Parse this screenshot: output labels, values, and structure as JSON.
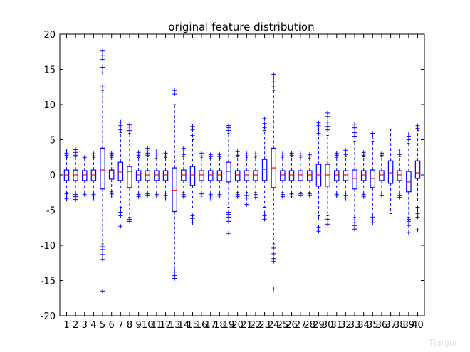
{
  "chart_data": {
    "type": "box",
    "title": "original feature distribution",
    "xlabel": "",
    "ylabel": "",
    "ylim": [
      -20,
      20
    ],
    "yticks": [
      -20,
      -15,
      -10,
      -5,
      0,
      5,
      10,
      15,
      20
    ],
    "categories": [
      "1",
      "2",
      "3",
      "4",
      "5",
      "6",
      "7",
      "8",
      "9",
      "10",
      "11",
      "12",
      "13",
      "14",
      "15",
      "16",
      "17",
      "18",
      "19",
      "20",
      "21",
      "22",
      "23",
      "24",
      "25",
      "26",
      "27",
      "28",
      "29",
      "30",
      "31",
      "32",
      "33",
      "34",
      "35",
      "36",
      "37",
      "38",
      "39",
      "40"
    ],
    "box_color": "#0000ff",
    "median_color": "#ff0000",
    "boxes": [
      {
        "median": 0.0,
        "q1": -0.8,
        "q3": 0.7,
        "whisker_low": -2.5,
        "whisker_high": 2.5,
        "fliers": [
          -3.4,
          -3.0,
          -2.7,
          2.8,
          3.1,
          3.4
        ]
      },
      {
        "median": 0.0,
        "q1": -0.8,
        "q3": 0.7,
        "whisker_low": -2.6,
        "whisker_high": 2.6,
        "fliers": [
          -3.5,
          -3.1,
          -2.8,
          2.8,
          3.2,
          3.6
        ]
      },
      {
        "median": 0.0,
        "q1": -0.8,
        "q3": 0.6,
        "whisker_low": -2.6,
        "whisker_high": 2.3,
        "fliers": [
          -2.8,
          2.5
        ]
      },
      {
        "median": 0.0,
        "q1": -0.8,
        "q3": 0.7,
        "whisker_low": -2.6,
        "whisker_high": 2.5,
        "fliers": [
          -3.3,
          -3.0,
          -2.8,
          2.7,
          3.0
        ]
      },
      {
        "median": 0.7,
        "q1": -2.0,
        "q3": 3.8,
        "whisker_low": -9.8,
        "whisker_high": 12.0,
        "fliers": [
          -16.5,
          -12.0,
          -11.3,
          -10.6,
          -10.2,
          12.5,
          14.5,
          15.3,
          16.4,
          17.0,
          17.6
        ]
      },
      {
        "median": 0.6,
        "q1": -0.6,
        "q3": 0.7,
        "whisker_low": -2.4,
        "whisker_high": 2.5,
        "fliers": [
          -3.0,
          -2.7,
          2.8,
          3.1
        ]
      },
      {
        "median": 0.4,
        "q1": -0.8,
        "q3": 1.8,
        "whisker_low": -4.6,
        "whisker_high": 6.0,
        "fliers": [
          -7.3,
          -5.8,
          -5.3,
          -5.0,
          6.4,
          7.0,
          7.5
        ]
      },
      {
        "median": 0.5,
        "q1": -1.8,
        "q3": 1.2,
        "whisker_low": -6.0,
        "whisker_high": 5.9,
        "fliers": [
          -6.6,
          -6.3,
          6.3,
          6.8,
          7.1
        ]
      },
      {
        "median": 0.0,
        "q1": -0.8,
        "q3": 0.6,
        "whisker_low": -2.6,
        "whisker_high": 2.5,
        "fliers": [
          -3.1,
          -2.8,
          2.8,
          3.2
        ]
      },
      {
        "median": 0.0,
        "q1": -0.8,
        "q3": 0.6,
        "whisker_low": -2.6,
        "whisker_high": 2.6,
        "fliers": [
          -2.9,
          -2.7,
          2.8,
          3.1,
          3.4,
          3.8
        ]
      },
      {
        "median": 0.0,
        "q1": -0.8,
        "q3": 0.6,
        "whisker_low": -2.6,
        "whisker_high": 2.4,
        "fliers": [
          -3.0,
          -2.8,
          2.7,
          3.0,
          3.4
        ]
      },
      {
        "median": 0.0,
        "q1": -0.8,
        "q3": 0.6,
        "whisker_low": -2.6,
        "whisker_high": 2.5,
        "fliers": [
          -3.3,
          -2.9,
          2.7,
          3.1
        ]
      },
      {
        "median": -2.2,
        "q1": -5.2,
        "q3": 1.0,
        "whisker_low": -13.5,
        "whisker_high": 10.0,
        "fliers": [
          -14.7,
          -14.3,
          -13.8,
          11.5,
          12.0
        ]
      },
      {
        "median": 0.0,
        "q1": -0.8,
        "q3": 0.7,
        "whisker_low": -2.5,
        "whisker_high": 2.6,
        "fliers": [
          -3.1,
          -2.8,
          2.9,
          3.4,
          3.8
        ]
      },
      {
        "median": 0.0,
        "q1": -1.5,
        "q3": 1.2,
        "whisker_low": -5.0,
        "whisker_high": 5.0,
        "fliers": [
          -6.8,
          -6.2,
          -5.8,
          5.6,
          6.4,
          6.9
        ]
      },
      {
        "median": 0.0,
        "q1": -0.8,
        "q3": 0.6,
        "whisker_low": -2.6,
        "whisker_high": 2.5,
        "fliers": [
          -3.0,
          -2.7,
          2.7,
          3.1
        ]
      },
      {
        "median": 0.0,
        "q1": -0.8,
        "q3": 0.6,
        "whisker_low": -2.6,
        "whisker_high": 2.4,
        "fliers": [
          -3.3,
          -3.0,
          -2.8,
          2.6,
          2.9
        ]
      },
      {
        "median": 0.0,
        "q1": -0.8,
        "q3": 0.6,
        "whisker_low": -2.6,
        "whisker_high": 2.4,
        "fliers": [
          -3.0,
          -2.8,
          2.6,
          2.9
        ]
      },
      {
        "median": 0.5,
        "q1": -1.0,
        "q3": 1.8,
        "whisker_low": -4.6,
        "whisker_high": 5.9,
        "fliers": [
          -8.3,
          -6.6,
          -6.0,
          -5.6,
          -5.3,
          6.3,
          6.7,
          7.0
        ]
      },
      {
        "median": 0.0,
        "q1": -0.8,
        "q3": 0.6,
        "whisker_low": -2.5,
        "whisker_high": 2.6,
        "fliers": [
          -3.1,
          -2.8,
          2.8,
          3.3
        ]
      },
      {
        "median": 0.0,
        "q1": -0.8,
        "q3": 0.6,
        "whisker_low": -2.5,
        "whisker_high": 2.5,
        "fliers": [
          -4.2,
          -3.3,
          -2.9,
          2.7,
          3.0
        ]
      },
      {
        "median": 0.0,
        "q1": -0.8,
        "q3": 0.6,
        "whisker_low": -2.5,
        "whisker_high": 2.5,
        "fliers": [
          -3.2,
          -2.8,
          2.7,
          3.0
        ]
      },
      {
        "median": 0.8,
        "q1": -0.8,
        "q3": 2.2,
        "whisker_low": -4.6,
        "whisker_high": 6.3,
        "fliers": [
          -6.3,
          -5.8,
          -5.4,
          6.7,
          7.3,
          8.0
        ]
      },
      {
        "median": 1.0,
        "q1": -1.8,
        "q3": 3.8,
        "whisker_low": -9.8,
        "whisker_high": 12.0,
        "fliers": [
          -16.2,
          -12.3,
          -11.9,
          -11.2,
          -10.4,
          12.5,
          13.2,
          13.8,
          14.3
        ]
      },
      {
        "median": 0.0,
        "q1": -0.8,
        "q3": 0.6,
        "whisker_low": -2.5,
        "whisker_high": 2.5,
        "fliers": [
          -3.1,
          -2.8,
          2.7,
          3.0
        ]
      },
      {
        "median": 0.0,
        "q1": -0.8,
        "q3": 0.6,
        "whisker_low": -2.6,
        "whisker_high": 2.6,
        "fliers": [
          -3.0,
          -2.7,
          2.8,
          3.1
        ]
      },
      {
        "median": 0.0,
        "q1": -0.8,
        "q3": 0.6,
        "whisker_low": -2.5,
        "whisker_high": 2.5,
        "fliers": [
          -2.9,
          -2.7,
          2.7,
          3.0
        ]
      },
      {
        "median": 0.0,
        "q1": -0.8,
        "q3": 0.6,
        "whisker_low": -2.5,
        "whisker_high": 2.4,
        "fliers": [
          -2.9,
          -2.7,
          2.7,
          2.9
        ]
      },
      {
        "median": 0.0,
        "q1": -1.6,
        "q3": 1.5,
        "whisker_low": -5.8,
        "whisker_high": 5.4,
        "fliers": [
          -8.0,
          -7.4,
          -6.1,
          5.9,
          6.5,
          7.0,
          7.4
        ]
      },
      {
        "median": 0.0,
        "q1": -1.6,
        "q3": 1.5,
        "whisker_low": -5.8,
        "whisker_high": 5.6,
        "fliers": [
          -7.0,
          -6.3,
          6.4,
          6.9,
          7.5,
          8.3,
          8.8
        ]
      },
      {
        "median": 0.0,
        "q1": -0.8,
        "q3": 0.6,
        "whisker_low": -2.6,
        "whisker_high": 2.5,
        "fliers": [
          -3.0,
          -2.8,
          2.8,
          3.1
        ]
      },
      {
        "median": 0.0,
        "q1": -0.8,
        "q3": 0.6,
        "whisker_low": -2.6,
        "whisker_high": 2.6,
        "fliers": [
          -3.3,
          -2.9,
          2.9,
          3.5
        ]
      },
      {
        "median": -0.5,
        "q1": -2.0,
        "q3": 0.7,
        "whisker_low": -6.0,
        "whisker_high": 4.8,
        "fliers": [
          -7.7,
          -7.2,
          -6.8,
          -6.4,
          5.5,
          6.0,
          6.7,
          7.2
        ]
      },
      {
        "median": 0.0,
        "q1": -0.8,
        "q3": 0.6,
        "whisker_low": -2.6,
        "whisker_high": 2.6,
        "fliers": [
          -3.1,
          -2.8,
          2.8,
          3.2
        ]
      },
      {
        "median": -0.5,
        "q1": -1.8,
        "q3": 0.7,
        "whisker_low": -5.7,
        "whisker_high": 4.8,
        "fliers": [
          -6.8,
          -6.4,
          -6.0,
          5.4,
          5.9
        ]
      },
      {
        "median": 0.0,
        "q1": -0.8,
        "q3": 0.6,
        "whisker_low": -2.6,
        "whisker_high": 2.6,
        "fliers": [
          -2.9,
          2.8,
          3.1
        ]
      },
      {
        "median": 0.3,
        "q1": -1.2,
        "q3": 2.0,
        "whisker_low": -5.5,
        "whisker_high": 6.5,
        "fliers": []
      },
      {
        "median": 0.0,
        "q1": -0.8,
        "q3": 0.6,
        "whisker_low": -2.6,
        "whisker_high": 2.6,
        "fliers": [
          -3.2,
          -2.9,
          2.9,
          3.4
        ]
      },
      {
        "median": -1.0,
        "q1": -2.4,
        "q3": 0.5,
        "whisker_low": -6.0,
        "whisker_high": 4.5,
        "fliers": [
          -8.2,
          -7.2,
          -6.6,
          -6.3,
          5.0,
          5.5,
          5.8
        ]
      },
      {
        "median": 0.3,
        "q1": -0.5,
        "q3": 2.0,
        "whisker_low": -4.0,
        "whisker_high": 6.3,
        "fliers": [
          -7.8,
          -6.0,
          -5.5,
          -5.0,
          -4.6,
          6.6,
          7.0
        ]
      }
    ]
  },
  "watermark": "TianJun"
}
